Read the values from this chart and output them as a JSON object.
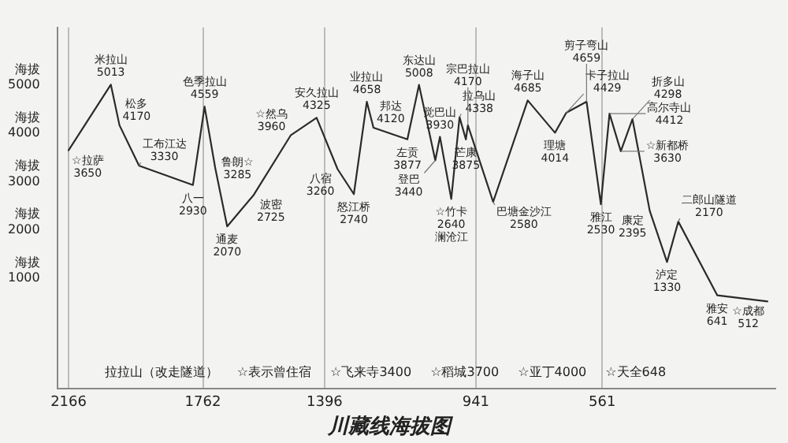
{
  "chart_data": {
    "type": "line",
    "title": "川藏线海拔图",
    "xlim": [
      2200,
      40
    ],
    "xticks": [
      2166,
      1762,
      1396,
      941,
      561
    ],
    "ylim": [
      -1300,
      6200
    ],
    "yticks": [
      1000,
      2000,
      3000,
      4000,
      5000
    ],
    "ylabel": "海拔",
    "grid": "x",
    "marker": "none",
    "line_style": "solid",
    "legend": false,
    "series": [
      {
        "color": "#2b2b2b",
        "x": [
          2166,
          2039,
          2013,
          1954,
          1792,
          1757,
          1725,
          1689,
          1609,
          1498,
          1420,
          1357,
          1308,
          1269,
          1249,
          1147,
          1112,
          1063,
          1049,
          1015,
          990,
          971,
          965,
          889,
          785,
          703,
          669,
          608,
          565,
          539,
          505,
          470,
          418,
          366,
          332,
          215,
          64
        ],
        "values": [
          3650,
          5013,
          4170,
          3330,
          2930,
          4559,
          3285,
          2070,
          2725,
          3960,
          4325,
          3260,
          2740,
          4658,
          4120,
          3877,
          5008,
          3440,
          3930,
          2640,
          4338,
          3875,
          4170,
          2580,
          4685,
          4014,
          4429,
          4659,
          2530,
          4412,
          3630,
          4298,
          2395,
          1330,
          2170,
          641,
          512
        ]
      }
    ],
    "annotations": [
      {
        "text": "☆拉萨\n3650",
        "x": 2166,
        "y": 3650
      },
      {
        "text": "米拉山\n5013",
        "x": 2039,
        "y": 5013
      },
      {
        "text": "松多\n4170",
        "x": 2013,
        "y": 4170
      },
      {
        "text": "工布江达\n3330",
        "x": 1954,
        "y": 3330
      },
      {
        "text": "八一\n2930",
        "x": 1792,
        "y": 2930
      },
      {
        "text": "色季拉山\n4559",
        "x": 1757,
        "y": 4559
      },
      {
        "text": "鲁朗☆\n3285",
        "x": 1725,
        "y": 3285
      },
      {
        "text": "通麦\n2070",
        "x": 1689,
        "y": 2070
      },
      {
        "text": "波密\n2725",
        "x": 1609,
        "y": 2725
      },
      {
        "text": "☆然乌\n3960",
        "x": 1498,
        "y": 3960
      },
      {
        "text": "安久拉山\n4325",
        "x": 1420,
        "y": 4325
      },
      {
        "text": "八宿\n3260",
        "x": 1357,
        "y": 3260
      },
      {
        "text": "怒江桥\n2740",
        "x": 1308,
        "y": 2740
      },
      {
        "text": "业拉山\n4658",
        "x": 1269,
        "y": 4658
      },
      {
        "text": "邦达\n4120",
        "x": 1249,
        "y": 4120
      },
      {
        "text": "左贡\n3877",
        "x": 1147,
        "y": 3877
      },
      {
        "text": "东达山\n5008",
        "x": 1112,
        "y": 5008
      },
      {
        "text": "登巴\n3440",
        "x": 1063,
        "y": 3440
      },
      {
        "text": "觉巴山\n3930",
        "x": 1049,
        "y": 3930
      },
      {
        "text": "☆竹卡\n2640\n澜沧江",
        "x": 1015,
        "y": 2640
      },
      {
        "text": "拉乌山\n4338",
        "x": 990,
        "y": 4338
      },
      {
        "text": "芒康\n3875",
        "x": 971,
        "y": 3875
      },
      {
        "text": "宗巴拉山\n4170",
        "x": 965,
        "y": 4170
      },
      {
        "text": "巴塘金沙江\n2580",
        "x": 889,
        "y": 2580
      },
      {
        "text": "海子山\n4685",
        "x": 785,
        "y": 4685
      },
      {
        "text": "理塘\n4014",
        "x": 703,
        "y": 4014
      },
      {
        "text": "卡子拉山\n4429",
        "x": 669,
        "y": 4429
      },
      {
        "text": "剪子弯山\n4659",
        "x": 608,
        "y": 4659
      },
      {
        "text": "雅江\n2530",
        "x": 565,
        "y": 2530
      },
      {
        "text": "高尔寺山\n4412",
        "x": 539,
        "y": 4412
      },
      {
        "text": "☆新都桥\n3630",
        "x": 505,
        "y": 3630
      },
      {
        "text": "折多山\n4298",
        "x": 470,
        "y": 4298
      },
      {
        "text": "康定\n2395",
        "x": 418,
        "y": 2395
      },
      {
        "text": "泸定\n1330",
        "x": 366,
        "y": 1330
      },
      {
        "text": "二郎山隧道\n2170",
        "x": 332,
        "y": 2170
      },
      {
        "text": "雅安\n641",
        "x": 215,
        "y": 641
      },
      {
        "text": "☆成都\n512",
        "x": 64,
        "y": 512
      },
      "拉拉山（改走隧道）",
      "☆表示曾住宿",
      "☆飞来寺3400",
      "☆稻城3700",
      "☆亚丁4000",
      "☆天全648"
    ]
  }
}
